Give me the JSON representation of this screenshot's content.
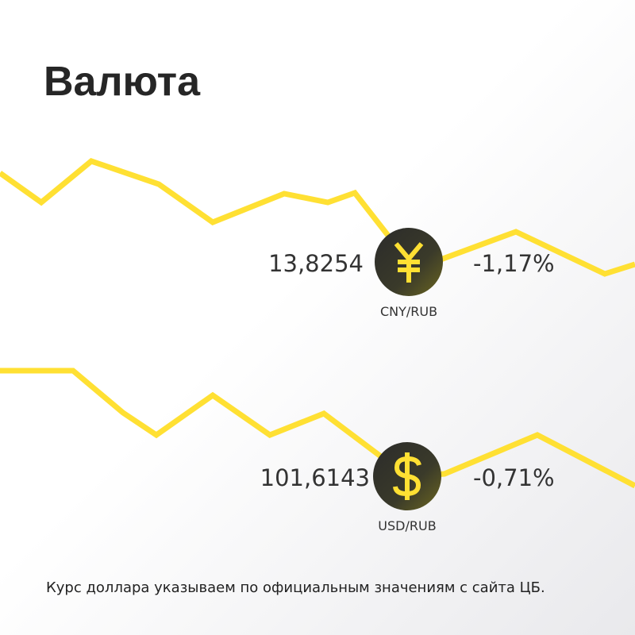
{
  "header": {
    "title": "Валюта"
  },
  "rates": [
    {
      "value": "13,8254",
      "pair": "CNY/RUB",
      "change": "-1,17%"
    },
    {
      "value": "101,6143",
      "pair": "USD/RUB",
      "change": "-0,71%"
    }
  ],
  "footer": {
    "note": "Курс доллара указываем по официальным значениям с сайта ЦБ."
  }
}
